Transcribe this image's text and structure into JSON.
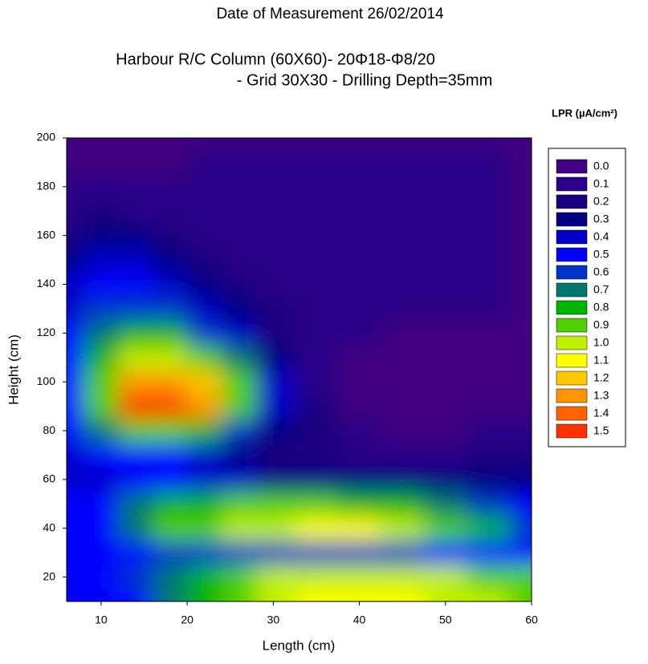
{
  "chart_data": {
    "type": "contour",
    "title": "Date of Measurement 26/02/2014",
    "subtitle": [
      "Harbour R/C Column (60X60)- 20Φ18-Φ8/20",
      "- Grid 30X30 - Drilling Depth=35mm"
    ],
    "x_label": "Length (cm)",
    "y_label": "Height (cm)",
    "legend_title": "LPR (µA/cm²)",
    "xlim": [
      6,
      60
    ],
    "xticks": [
      10,
      20,
      30,
      40,
      50,
      60
    ],
    "ylim": [
      10,
      200
    ],
    "yticks": [
      20,
      40,
      60,
      80,
      100,
      120,
      140,
      160,
      180,
      200
    ],
    "levels": [
      {
        "value": 0,
        "label": "0.0"
      },
      0.1,
      0.2,
      0.3,
      0.4,
      0.5,
      0.6,
      0.7,
      0.8,
      0.9,
      {
        "value": 1,
        "label": "1.0"
      },
      1.1,
      1.2,
      1.3,
      1.4,
      1.5
    ],
    "colors": [
      "#400080",
      "#2c0088",
      "#1a0080",
      "#000082",
      "#0000c8",
      "#0000ff",
      "#0034c8",
      "#00786e",
      "#00b400",
      "#50d000",
      "#c0f000",
      "#ffff00",
      "#ffc800",
      "#ff9600",
      "#ff6400",
      "#ff3200"
    ],
    "x": [
      6,
      10,
      14,
      18,
      22,
      26,
      30,
      35,
      40,
      45,
      50,
      55,
      60
    ],
    "y": [
      10,
      20,
      30,
      40,
      50,
      60,
      70,
      80,
      90,
      100,
      110,
      120,
      130,
      140,
      150,
      160,
      170,
      180,
      190,
      200
    ],
    "z": [
      [
        0.5,
        0.5,
        0.55,
        0.7,
        0.85,
        0.95,
        1.05,
        1.1,
        1.1,
        1.1,
        1.05,
        1.0,
        0.95
      ],
      [
        0.5,
        0.5,
        0.6,
        0.7,
        0.85,
        0.95,
        1.0,
        1.05,
        1.05,
        1.05,
        1.0,
        0.95,
        0.9
      ],
      [
        0.5,
        0.5,
        0.55,
        0.6,
        0.65,
        0.65,
        0.65,
        0.65,
        0.65,
        0.6,
        0.55,
        0.5,
        0.5
      ],
      [
        0.5,
        0.55,
        0.75,
        0.9,
        0.95,
        1.0,
        1.05,
        1.1,
        1.1,
        1.05,
        0.95,
        0.8,
        0.6
      ],
      [
        0.5,
        0.55,
        0.7,
        0.8,
        0.85,
        0.9,
        0.9,
        0.9,
        0.85,
        0.8,
        0.7,
        0.6,
        0.5
      ],
      [
        0.45,
        0.45,
        0.5,
        0.5,
        0.45,
        0.4,
        0.35,
        0.3,
        0.3,
        0.3,
        0.3,
        0.3,
        0.3
      ],
      [
        0.45,
        0.5,
        0.5,
        0.5,
        0.45,
        0.35,
        0.25,
        0.2,
        0.15,
        0.15,
        0.15,
        0.2,
        0.2
      ],
      [
        0.5,
        0.7,
        0.9,
        0.95,
        0.8,
        0.6,
        0.35,
        0.2,
        0.1,
        0.05,
        0.05,
        0.1,
        0.1
      ],
      [
        0.5,
        0.95,
        1.5,
        1.5,
        1.3,
        0.95,
        0.45,
        0.2,
        0.05,
        0,
        0,
        0.05,
        0.05
      ],
      [
        0.5,
        0.95,
        1.35,
        1.35,
        1.2,
        0.9,
        0.4,
        0.15,
        0.05,
        0,
        0,
        0,
        0.05
      ],
      [
        0.5,
        0.8,
        1.05,
        1.05,
        0.95,
        0.7,
        0.35,
        0.15,
        0.05,
        0,
        0,
        0,
        0.05
      ],
      [
        0.5,
        0.7,
        0.85,
        0.8,
        0.65,
        0.45,
        0.25,
        0.15,
        0.1,
        0.05,
        0.05,
        0.05,
        0.05
      ],
      [
        0.45,
        0.6,
        0.65,
        0.6,
        0.45,
        0.3,
        0.2,
        0.12,
        0.1,
        0.1,
        0.1,
        0.1,
        0.05
      ],
      [
        0.4,
        0.55,
        0.55,
        0.45,
        0.3,
        0.2,
        0.15,
        0.12,
        0.1,
        0.1,
        0.1,
        0.1,
        0.05
      ],
      [
        0.3,
        0.45,
        0.4,
        0.3,
        0.2,
        0.15,
        0.12,
        0.1,
        0.1,
        0.1,
        0.1,
        0.1,
        0.05
      ],
      [
        0.2,
        0.3,
        0.3,
        0.25,
        0.15,
        0.12,
        0.1,
        0.1,
        0.1,
        0.1,
        0.1,
        0.1,
        0.05
      ],
      [
        0.15,
        0.2,
        0.15,
        0.15,
        0.12,
        0.1,
        0.1,
        0.1,
        0.1,
        0.1,
        0.1,
        0.1,
        0.05
      ],
      [
        0.1,
        0.1,
        0.1,
        0.1,
        0.1,
        0.1,
        0.1,
        0.1,
        0.1,
        0.1,
        0.1,
        0.1,
        0.05
      ],
      [
        0.05,
        0.05,
        0.05,
        0.05,
        0.1,
        0.1,
        0.1,
        0.1,
        0.1,
        0.1,
        0.1,
        0.1,
        0.05
      ],
      [
        0,
        0,
        0,
        0,
        0.05,
        0.05,
        0.05,
        0.05,
        0.05,
        0.05,
        0.05,
        0.05,
        0.05
      ]
    ]
  }
}
